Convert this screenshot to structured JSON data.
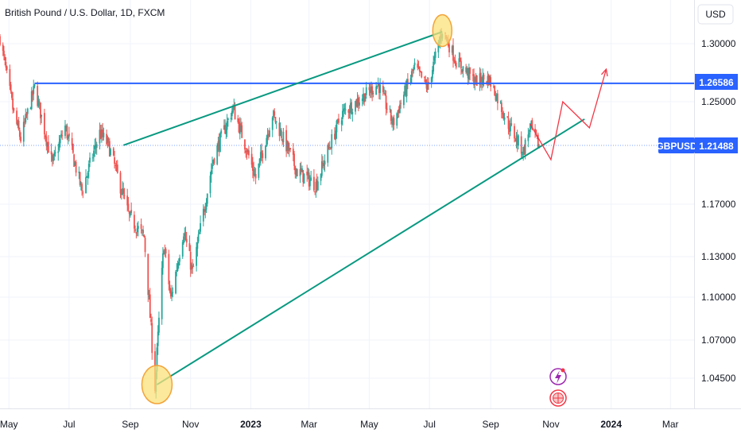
{
  "header": {
    "title": "British Pound / U.S. Dollar, 1D, FXCM",
    "currency_button": "USD"
  },
  "colors": {
    "up": "#26a69a",
    "down": "#ef5350",
    "trend": "#089981",
    "resistance": "#2962ff",
    "badge": "#2962ff",
    "highlight_fill": "#fbe27a",
    "highlight_stroke": "#f2a33a",
    "projection": "#f23645"
  },
  "icons": [
    "lightning-icon",
    "globe-flag-icon"
  ],
  "chart_data": {
    "type": "candlestick",
    "symbol": "GBPUSD",
    "ylim": [
      1.027,
      1.318
    ],
    "y_ticks": [
      "1.30000",
      "1.25000",
      "1.17000",
      "1.13000",
      "1.10000",
      "1.07000",
      "1.04500"
    ],
    "y_tick_values": [
      1.3,
      1.25,
      1.17,
      1.13,
      1.1,
      1.07,
      1.045
    ],
    "x_range": [
      "2022-04-22",
      "2024-03-25"
    ],
    "x_ticks": [
      "May",
      "Jul",
      "Sep",
      "Nov",
      "2023",
      "Mar",
      "May",
      "Jul",
      "Sep",
      "Nov",
      "2024",
      "Mar"
    ],
    "x_tick_dates": [
      "2022-05-01",
      "2022-07-01",
      "2022-09-01",
      "2022-11-01",
      "2023-01-01",
      "2023-03-01",
      "2023-05-01",
      "2023-07-01",
      "2023-09-01",
      "2023-11-01",
      "2024-01-01",
      "2024-03-01"
    ],
    "price_path": [
      [
        "2022-04-22",
        1.305
      ],
      [
        "2022-05-06",
        1.24
      ],
      [
        "2022-05-13",
        1.22
      ],
      [
        "2022-05-27",
        1.262
      ],
      [
        "2022-06-14",
        1.2
      ],
      [
        "2022-06-27",
        1.23
      ],
      [
        "2022-07-14",
        1.18
      ],
      [
        "2022-08-01",
        1.225
      ],
      [
        "2022-08-10",
        1.215
      ],
      [
        "2022-08-31",
        1.16
      ],
      [
        "2022-09-15",
        1.145
      ],
      [
        "2022-09-26",
        1.038
      ],
      [
        "2022-10-05",
        1.14
      ],
      [
        "2022-10-12",
        1.098
      ],
      [
        "2022-10-25",
        1.15
      ],
      [
        "2022-11-03",
        1.118
      ],
      [
        "2022-11-24",
        1.205
      ],
      [
        "2022-12-14",
        1.245
      ],
      [
        "2023-01-06",
        1.19
      ],
      [
        "2023-01-23",
        1.24
      ],
      [
        "2023-02-17",
        1.195
      ],
      [
        "2023-03-08",
        1.185
      ],
      [
        "2023-04-03",
        1.24
      ],
      [
        "2023-05-10",
        1.265
      ],
      [
        "2023-05-25",
        1.232
      ],
      [
        "2023-06-16",
        1.28
      ],
      [
        "2023-06-29",
        1.262
      ],
      [
        "2023-07-14",
        1.312
      ],
      [
        "2023-07-28",
        1.285
      ],
      [
        "2023-08-16",
        1.268
      ],
      [
        "2023-08-30",
        1.27
      ],
      [
        "2023-09-20",
        1.23
      ],
      [
        "2023-10-04",
        1.21
      ],
      [
        "2023-10-11",
        1.23
      ],
      [
        "2023-10-20",
        1.214
      ]
    ],
    "levels": {
      "resistance": 1.26586,
      "last_price": 1.21488
    },
    "level_labels": {
      "resistance": "1.26586",
      "last_price": "1.21488",
      "symbol_badge": "GBPUSD"
    },
    "trend_lines": {
      "support": [
        [
          "2022-09-28",
          1.04
        ],
        [
          "2023-12-05",
          1.236
        ]
      ],
      "upper": [
        [
          "2022-08-25",
          1.215
        ],
        [
          "2023-07-14",
          1.31
        ]
      ],
      "resistance_start": "2022-05-27"
    },
    "highlights": [
      [
        "2022-09-28",
        1.04
      ],
      [
        "2023-07-14",
        1.311
      ]
    ],
    "projection": [
      [
        "2023-10-11",
        1.232
      ],
      [
        "2023-11-01",
        1.204
      ],
      [
        "2023-11-13",
        1.25
      ],
      [
        "2023-12-10",
        1.229
      ],
      [
        "2023-12-27",
        1.278
      ]
    ]
  }
}
